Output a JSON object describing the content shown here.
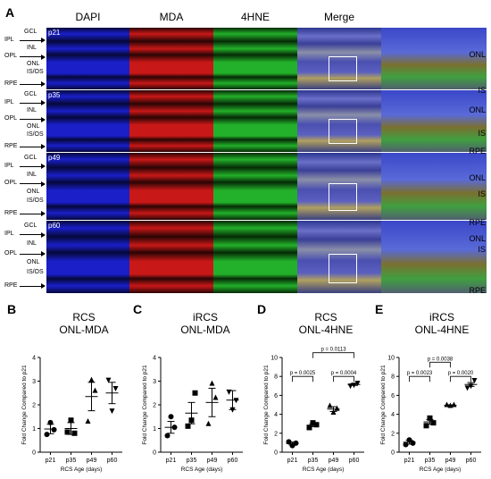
{
  "panelA": {
    "letter": "A",
    "columns": [
      "DAPI",
      "MDA",
      "4HNE",
      "Merge"
    ],
    "rows": [
      {
        "age": "p21",
        "labels": [
          "GCL",
          "IPL",
          "INL",
          "OPL",
          "ONL",
          "IS/OS",
          "RPE"
        ]
      },
      {
        "age": "p35",
        "labels": [
          "GCL",
          "IPL",
          "INL",
          "OPL",
          "ONL",
          "IS/OS",
          "RPE"
        ]
      },
      {
        "age": "p49",
        "labels": [
          "GCL",
          "IPL",
          "INL",
          "OPL",
          "ONL",
          "IS/OS",
          "RPE"
        ]
      },
      {
        "age": "p60",
        "labels": [
          "GCL",
          "IPL",
          "INL",
          "OPL",
          "ONL",
          "IS/OS",
          "RPE"
        ]
      }
    ],
    "zoom_labels": [
      "ONL",
      "IS",
      "ONL",
      "IS",
      "RPE",
      "ONL",
      "IS",
      "RPE",
      "ONL",
      "IS",
      "RPE"
    ],
    "colors": {
      "dapi": "#1a1fc8",
      "mda": "#c81818",
      "hne": "#23b02a"
    }
  },
  "chart_data": [
    {
      "letter": "B",
      "type": "scatter",
      "title": "RCS",
      "subtitle": "ONL-MDA",
      "ylabel": "Fold  Change Compared to p21",
      "xlabel": "RCS Age (days)",
      "categories": [
        "p21",
        "p35",
        "p49",
        "p60"
      ],
      "ylim": [
        0,
        4
      ],
      "yticks": [
        "0",
        "1",
        "2",
        "3",
        "4"
      ],
      "markers": [
        "circle",
        "square",
        "triangle-up",
        "triangle-down"
      ],
      "points": [
        [
          0.75,
          1.25,
          0.95
        ],
        [
          0.85,
          1.35,
          0.8
        ],
        [
          1.3,
          3.05,
          2.6
        ],
        [
          3.05,
          1.75,
          2.7
        ]
      ],
      "means": [
        0.98,
        1.0,
        2.35,
        2.5
      ],
      "errors": [
        0.2,
        0.25,
        0.6,
        0.45
      ],
      "sig": []
    },
    {
      "letter": "C",
      "type": "scatter",
      "title": "iRCS",
      "subtitle": "ONL-MDA",
      "ylabel": "Fold  Change Compared to p21",
      "xlabel": "RCS Age (days)",
      "categories": [
        "p21",
        "p35",
        "p49",
        "p60"
      ],
      "ylim": [
        0,
        4
      ],
      "yticks": [
        "0",
        "1",
        "2",
        "3",
        "4"
      ],
      "markers": [
        "circle",
        "square",
        "triangle-up",
        "triangle-down"
      ],
      "points": [
        [
          0.7,
          1.5,
          1.05
        ],
        [
          1.1,
          1.35,
          2.5
        ],
        [
          1.2,
          2.9,
          2.3
        ],
        [
          2.55,
          1.8,
          2.2
        ]
      ],
      "means": [
        1.05,
        1.65,
        2.1,
        2.2
      ],
      "errors": [
        0.25,
        0.45,
        0.6,
        0.4
      ],
      "sig": []
    },
    {
      "letter": "D",
      "type": "scatter",
      "title": "RCS",
      "subtitle": "ONL-4HNE",
      "ylabel": "Fold  Change Compared to p21",
      "xlabel": "RCS Age (days)",
      "categories": [
        "p21",
        "p35",
        "p49",
        "p60"
      ],
      "ylim": [
        0,
        10
      ],
      "yticks": [
        "0",
        "2",
        "4",
        "6",
        "8",
        "10"
      ],
      "markers": [
        "circle",
        "square",
        "triangle-up",
        "triangle-down"
      ],
      "points": [
        [
          1.1,
          0.7,
          0.95
        ],
        [
          2.6,
          3.1,
          2.9
        ],
        [
          4.9,
          4.2,
          4.6
        ],
        [
          7.0,
          7.1,
          7.3
        ]
      ],
      "means": [
        0.92,
        2.85,
        4.55,
        7.15
      ],
      "errors": [
        0.15,
        0.15,
        0.25,
        0.1
      ],
      "sig": [
        {
          "from": 0,
          "to": 1,
          "level": 8.0,
          "label": "p = 0.0025"
        },
        {
          "from": 1,
          "to": 3,
          "level": 10.5,
          "label": "p = 0.0113"
        },
        {
          "from": 2,
          "to": 3,
          "level": 8.0,
          "label": "p = 0.0004"
        }
      ]
    },
    {
      "letter": "E",
      "type": "scatter",
      "title": "iRCS",
      "subtitle": "ONL-4HNE",
      "ylabel": "Fold  Change Compared to p21",
      "xlabel": "RCS Age (days)",
      "categories": [
        "p21",
        "p35",
        "p49",
        "p60"
      ],
      "ylim": [
        0,
        10
      ],
      "yticks": [
        "0",
        "2",
        "4",
        "6",
        "8",
        "10"
      ],
      "markers": [
        "circle",
        "square",
        "triangle-up",
        "triangle-down"
      ],
      "points": [
        [
          0.8,
          1.3,
          0.95
        ],
        [
          2.8,
          3.6,
          3.1
        ],
        [
          5.0,
          4.9,
          5.0
        ],
        [
          6.8,
          7.0,
          7.6
        ]
      ],
      "means": [
        1.05,
        3.2,
        4.95,
        7.15
      ],
      "errors": [
        0.2,
        0.25,
        0.05,
        0.2
      ],
      "sig": [
        {
          "from": 0,
          "to": 1,
          "level": 8.0,
          "label": "p = 0.0023"
        },
        {
          "from": 1,
          "to": 2,
          "level": 9.5,
          "label": "p = 0.0038"
        },
        {
          "from": 2,
          "to": 3,
          "level": 8.0,
          "label": "p = 0.0020"
        }
      ]
    }
  ]
}
